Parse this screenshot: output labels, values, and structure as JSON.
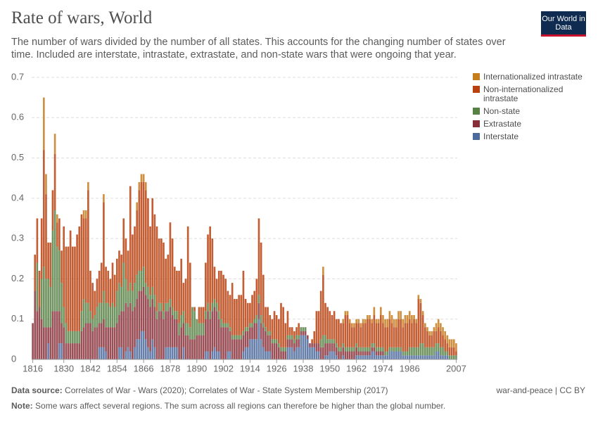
{
  "chart_data": {
    "type": "stacked-bar",
    "title": "Rate of wars, World",
    "subtitle": "The number of wars divided by the number of all states. This accounts for the changing number of states over time. Included are interstate, intrastate, extrastate, and non-state wars that were ongoing that year.",
    "logo": "Our World in Data",
    "source_label": "Data source:",
    "source": "Correlates of War - Wars (2020); Correlates of War - State System Membership (2017)",
    "license": "war-and-peace | CC BY",
    "note_label": "Note:",
    "note": "Some wars affect several regions. The sum across all regions can therefore be higher than the global number.",
    "xlim": [
      1815.5,
      2007.5
    ],
    "xticks": [
      1816,
      1830,
      1842,
      1854,
      1866,
      1878,
      1890,
      1902,
      1914,
      1926,
      1938,
      1950,
      1962,
      1974,
      1986,
      2007
    ],
    "ylim": [
      0,
      0.7
    ],
    "yticks": [
      0,
      0.1,
      0.2,
      0.3,
      0.4,
      0.5,
      0.6,
      0.7
    ],
    "grid": true,
    "legend": "right",
    "x": [
      1816,
      1817,
      1818,
      1819,
      1820,
      1821,
      1822,
      1823,
      1824,
      1825,
      1826,
      1827,
      1828,
      1829,
      1830,
      1831,
      1832,
      1833,
      1834,
      1835,
      1836,
      1837,
      1838,
      1839,
      1840,
      1841,
      1842,
      1843,
      1844,
      1845,
      1846,
      1847,
      1848,
      1849,
      1850,
      1851,
      1852,
      1853,
      1854,
      1855,
      1856,
      1857,
      1858,
      1859,
      1860,
      1861,
      1862,
      1863,
      1864,
      1865,
      1866,
      1867,
      1868,
      1869,
      1870,
      1871,
      1872,
      1873,
      1874,
      1875,
      1876,
      1877,
      1878,
      1879,
      1880,
      1881,
      1882,
      1883,
      1884,
      1885,
      1886,
      1887,
      1888,
      1889,
      1890,
      1891,
      1892,
      1893,
      1894,
      1895,
      1896,
      1897,
      1898,
      1899,
      1900,
      1901,
      1902,
      1903,
      1904,
      1905,
      1906,
      1907,
      1908,
      1909,
      1910,
      1911,
      1912,
      1913,
      1914,
      1915,
      1916,
      1917,
      1918,
      1919,
      1920,
      1921,
      1922,
      1923,
      1924,
      1925,
      1926,
      1927,
      1928,
      1929,
      1930,
      1931,
      1932,
      1933,
      1934,
      1935,
      1936,
      1937,
      1938,
      1939,
      1940,
      1941,
      1942,
      1943,
      1944,
      1945,
      1946,
      1947,
      1948,
      1949,
      1950,
      1951,
      1952,
      1953,
      1954,
      1955,
      1956,
      1957,
      1958,
      1959,
      1960,
      1961,
      1962,
      1963,
      1964,
      1965,
      1966,
      1967,
      1968,
      1969,
      1970,
      1971,
      1972,
      1973,
      1974,
      1975,
      1976,
      1977,
      1978,
      1979,
      1980,
      1981,
      1982,
      1983,
      1984,
      1985,
      1986,
      1987,
      1988,
      1989,
      1990,
      1991,
      1992,
      1993,
      1994,
      1995,
      1996,
      1997,
      1998,
      1999,
      2000,
      2001,
      2002,
      2003,
      2004,
      2005,
      2006,
      2007
    ],
    "series": [
      {
        "name": "Interstate",
        "color": "#4c6a9c",
        "values": [
          0,
          0,
          0,
          0,
          0,
          0,
          0,
          0.04,
          0,
          0,
          0,
          0,
          0.04,
          0.04,
          0,
          0,
          0,
          0,
          0,
          0,
          0,
          0,
          0,
          0,
          0,
          0,
          0,
          0,
          0,
          0,
          0.03,
          0.03,
          0.03,
          0.02,
          0,
          0,
          0,
          0,
          0,
          0.03,
          0.03,
          0,
          0.02,
          0.03,
          0.02,
          0,
          0.03,
          0.05,
          0.05,
          0.07,
          0.07,
          0.05,
          0.03,
          0.02,
          0.05,
          0.03,
          0,
          0,
          0,
          0,
          0.03,
          0.03,
          0.03,
          0.03,
          0.03,
          0.03,
          0,
          0,
          0.03,
          0,
          0,
          0,
          0,
          0,
          0,
          0,
          0,
          0,
          0.02,
          0.02,
          0,
          0.02,
          0.03,
          0.02,
          0.02,
          0,
          0,
          0,
          0.02,
          0.02,
          0,
          0,
          0,
          0,
          0,
          0.02,
          0.03,
          0.03,
          0.05,
          0.05,
          0.05,
          0.05,
          0.1,
          0.05,
          0.03,
          0.02,
          0.02,
          0.02,
          0,
          0,
          0,
          0,
          0,
          0,
          0,
          0.03,
          0.03,
          0.03,
          0.02,
          0.03,
          0.03,
          0.06,
          0.06,
          0.06,
          0.05,
          0.03,
          0.03,
          0.03,
          0.02,
          0.02,
          0,
          0,
          0.01,
          0.01,
          0.02,
          0.02,
          0.02,
          0.01,
          0,
          0,
          0.01,
          0,
          0,
          0,
          0,
          0,
          0.01,
          0.01,
          0.01,
          0.01,
          0.01,
          0.01,
          0.01,
          0.02,
          0.02,
          0.01,
          0.01,
          0.01,
          0.01,
          0.01,
          0.01,
          0.02,
          0.02,
          0.02,
          0.02,
          0.02,
          0.02,
          0.01,
          0.01,
          0.01,
          0.01,
          0.01,
          0.01,
          0.01,
          0.01,
          0.01,
          0.01,
          0.01,
          0.01,
          0.01,
          0.01,
          0.01,
          0.02,
          0.02,
          0.01,
          0.01,
          0.01,
          0.01,
          0,
          0,
          0,
          0
        ]
      },
      {
        "name": "Extrastate",
        "color": "#883039",
        "values": [
          0.09,
          0.17,
          0.12,
          0.13,
          0.1,
          0.08,
          0.08,
          0.04,
          0.08,
          0.12,
          0.12,
          0.12,
          0.08,
          0.05,
          0.08,
          0.04,
          0.04,
          0.04,
          0.04,
          0.04,
          0.04,
          0.04,
          0.07,
          0.08,
          0.09,
          0.09,
          0.09,
          0.07,
          0.08,
          0.08,
          0.06,
          0.06,
          0.07,
          0.06,
          0.08,
          0.08,
          0.08,
          0.08,
          0.09,
          0.08,
          0.09,
          0.12,
          0.12,
          0.1,
          0.12,
          0.12,
          0.1,
          0.1,
          0.12,
          0.1,
          0.11,
          0.11,
          0.12,
          0.11,
          0.1,
          0.1,
          0.1,
          0.12,
          0.12,
          0.1,
          0.09,
          0.09,
          0.1,
          0.08,
          0.07,
          0.07,
          0.06,
          0.08,
          0.06,
          0.06,
          0.06,
          0.05,
          0.05,
          0.05,
          0.06,
          0.06,
          0.06,
          0.06,
          0.08,
          0.1,
          0.1,
          0.1,
          0.1,
          0.1,
          0.08,
          0.08,
          0.08,
          0.08,
          0.06,
          0.05,
          0.05,
          0.05,
          0.05,
          0.05,
          0.05,
          0.04,
          0.04,
          0.04,
          0.03,
          0.03,
          0.04,
          0.04,
          0.04,
          0.04,
          0.05,
          0.05,
          0.04,
          0.04,
          0.04,
          0.04,
          0.04,
          0.03,
          0.02,
          0.02,
          0.02,
          0.02,
          0.02,
          0.02,
          0.02,
          0.02,
          0.02,
          0.01,
          0.01,
          0.01,
          0.01,
          0.01,
          0.01,
          0.01,
          0.02,
          0.02,
          0.03,
          0.03,
          0.03,
          0.03,
          0.02,
          0.02,
          0.02,
          0.02,
          0.02,
          0.02,
          0.02,
          0.02,
          0.02,
          0.02,
          0.02,
          0.02,
          0.02,
          0.01,
          0.01,
          0.01,
          0.01,
          0.01,
          0.01,
          0.01,
          0.01,
          0.01,
          0.01,
          0.01,
          0.01,
          0,
          0,
          0,
          0,
          0,
          0,
          0,
          0,
          0,
          0,
          0,
          0,
          0,
          0,
          0,
          0,
          0,
          0,
          0,
          0,
          0,
          0,
          0,
          0,
          0,
          0,
          0,
          0,
          0,
          0,
          0,
          0,
          0
        ]
      },
      {
        "name": "Non-state",
        "color": "#578145",
        "values": [
          0,
          0,
          0.12,
          0,
          0.1,
          0.15,
          0.12,
          0.12,
          0.1,
          0.2,
          0.25,
          0.16,
          0.15,
          0.1,
          0.05,
          0.05,
          0.03,
          0.03,
          0.03,
          0.03,
          0.03,
          0.03,
          0.05,
          0.07,
          0.05,
          0.05,
          0.03,
          0.03,
          0.03,
          0.05,
          0.05,
          0.05,
          0.07,
          0.06,
          0.06,
          0.05,
          0.06,
          0.05,
          0.08,
          0.08,
          0.06,
          0.12,
          0.06,
          0.04,
          0.05,
          0.05,
          0.06,
          0.06,
          0.05,
          0.05,
          0.05,
          0.03,
          0.03,
          0.03,
          0.03,
          0.03,
          0.02,
          0.02,
          0.02,
          0.02,
          0.02,
          0.02,
          0.02,
          0.02,
          0.02,
          0.02,
          0.03,
          0.03,
          0.03,
          0.03,
          0.03,
          0.03,
          0.08,
          0.07,
          0.04,
          0.03,
          0.03,
          0.03,
          0.02,
          0.02,
          0.02,
          0.02,
          0.02,
          0.02,
          0.02,
          0.02,
          0.01,
          0.01,
          0.01,
          0.01,
          0.01,
          0.01,
          0.01,
          0.01,
          0.01,
          0.01,
          0.01,
          0.01,
          0.01,
          0.01,
          0.01,
          0.02,
          0.02,
          0.02,
          0.01,
          0.01,
          0.01,
          0.01,
          0.01,
          0.01,
          0.01,
          0.01,
          0.01,
          0.01,
          0.01,
          0.01,
          0.01,
          0.01,
          0.01,
          0.01,
          0.01,
          0.01,
          0.01,
          0.01,
          0,
          0,
          0,
          0,
          0,
          0,
          0.02,
          0.03,
          0.02,
          0.01,
          0.01,
          0.01,
          0.01,
          0.01,
          0.01,
          0.01,
          0.01,
          0.01,
          0.01,
          0.01,
          0.01,
          0.01,
          0.01,
          0.01,
          0.01,
          0.01,
          0.01,
          0.01,
          0.01,
          0.01,
          0.01,
          0.01,
          0.01,
          0.01,
          0.01,
          0.01,
          0.01,
          0.01,
          0.01,
          0.01,
          0.01,
          0.01,
          0.01,
          0.01,
          0.01,
          0.01,
          0.02,
          0.02,
          0.02,
          0.02,
          0.02,
          0.03,
          0.03,
          0.02,
          0.02,
          0.02,
          0.02,
          0.02,
          0.02,
          0.02,
          0.02,
          0.02,
          0.01,
          0.01,
          0.01,
          0.01,
          0.01,
          0.01
        ]
      },
      {
        "name": "Non-internationalized intrastate",
        "color": "#b8410f",
        "values": [
          0,
          0.09,
          0.11,
          0.09,
          0.15,
          0.29,
          0.21,
          0.09,
          0.11,
          0.1,
          0.14,
          0.06,
          0.08,
          0.08,
          0.2,
          0.19,
          0.21,
          0.25,
          0.21,
          0.21,
          0.24,
          0.26,
          0.24,
          0.2,
          0.21,
          0.28,
          0.1,
          0.09,
          0.06,
          0.07,
          0.08,
          0.1,
          0.22,
          0.09,
          0.08,
          0.07,
          0.1,
          0.08,
          0.08,
          0.08,
          0.08,
          0.11,
          0.1,
          0.1,
          0.24,
          0.14,
          0.14,
          0.16,
          0.2,
          0.22,
          0.21,
          0.23,
          0.22,
          0.17,
          0.22,
          0.2,
          0.21,
          0.16,
          0.16,
          0.17,
          0.11,
          0.12,
          0.19,
          0.17,
          0.11,
          0.1,
          0.13,
          0.14,
          0.07,
          0.11,
          0.24,
          0.16,
          0,
          0.01,
          0,
          0.04,
          0.04,
          0.04,
          0.12,
          0.17,
          0.21,
          0.16,
          0.08,
          0.06,
          0.1,
          0.12,
          0.12,
          0.11,
          0.08,
          0.08,
          0.13,
          0.09,
          0.09,
          0.1,
          0.1,
          0.15,
          0.07,
          0.06,
          0.05,
          0.07,
          0.07,
          0.09,
          0.19,
          0.18,
          0.12,
          0.05,
          0.06,
          0.04,
          0.05,
          0.07,
          0.06,
          0.06,
          0.11,
          0.1,
          0.06,
          0.06,
          0.02,
          0.02,
          0.02,
          0.02,
          0.03,
          0,
          0,
          0,
          0,
          0,
          0.01,
          0.03,
          0.08,
          0.08,
          0.12,
          0.15,
          0.08,
          0.08,
          0.07,
          0.06,
          0.07,
          0.06,
          0.07,
          0.06,
          0.05,
          0.08,
          0.08,
          0.06,
          0.05,
          0.05,
          0.05,
          0.06,
          0.05,
          0.06,
          0.06,
          0.07,
          0.07,
          0.05,
          0.07,
          0.06,
          0.06,
          0.08,
          0.06,
          0.06,
          0.06,
          0.07,
          0.06,
          0.05,
          0.05,
          0.07,
          0.07,
          0.06,
          0.07,
          0.07,
          0.07,
          0.06,
          0.07,
          0.06,
          0.12,
          0.1,
          0.07,
          0.05,
          0.04,
          0.03,
          0.03,
          0.04,
          0.03,
          0.04,
          0.04,
          0.03,
          0.03,
          0.02,
          0.02,
          0.02,
          0.02,
          0.01
        ]
      },
      {
        "name": "Internationalized intrastate",
        "color": "#c67d1e",
        "values": [
          0,
          0,
          0,
          0,
          0,
          0.13,
          0.05,
          0,
          0,
          0,
          0.05,
          0.02,
          0,
          0,
          0,
          0,
          0,
          0,
          0,
          0,
          0,
          0,
          0,
          0.02,
          0.02,
          0.02,
          0,
          0,
          0,
          0,
          0,
          0,
          0.02,
          0,
          0,
          0,
          0,
          0,
          0,
          0,
          0,
          0,
          0,
          0,
          0,
          0,
          0,
          0.02,
          0.02,
          0.02,
          0.02,
          0.02,
          0,
          0,
          0,
          0,
          0,
          0,
          0,
          0,
          0,
          0,
          0,
          0,
          0,
          0,
          0,
          0,
          0,
          0,
          0,
          0,
          0,
          0,
          0,
          0,
          0,
          0,
          0,
          0,
          0,
          0,
          0,
          0,
          0,
          0,
          0,
          0,
          0,
          0,
          0,
          0,
          0,
          0,
          0,
          0,
          0,
          0,
          0,
          0,
          0,
          0,
          0,
          0,
          0,
          0,
          0,
          0,
          0,
          0,
          0,
          0,
          0,
          0,
          0,
          0,
          0,
          0,
          0,
          0,
          0,
          0,
          0,
          0,
          0,
          0,
          0,
          0,
          0,
          0,
          0,
          0.02,
          0,
          0,
          0,
          0,
          0,
          0,
          0,
          0,
          0.01,
          0.01,
          0.01,
          0.01,
          0.01,
          0.01,
          0.01,
          0.01,
          0.01,
          0.01,
          0.01,
          0.01,
          0.01,
          0.01,
          0.02,
          0.01,
          0.01,
          0.02,
          0.02,
          0.02,
          0.02,
          0.02,
          0.02,
          0.02,
          0.02,
          0.02,
          0.02,
          0.02,
          0.02,
          0.02,
          0.02,
          0.02,
          0.01,
          0.01,
          0.01,
          0.01,
          0.01,
          0.01,
          0.01,
          0.01,
          0.01,
          0.01,
          0.02,
          0.02,
          0.02,
          0.02,
          0.02,
          0.02,
          0.02,
          0.02,
          0.02,
          0.02
        ]
      }
    ]
  }
}
